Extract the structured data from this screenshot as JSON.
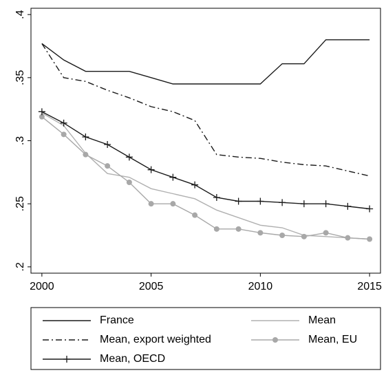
{
  "chart_data": {
    "type": "line",
    "x": [
      2000,
      2001,
      2002,
      2003,
      2004,
      2005,
      2006,
      2007,
      2008,
      2009,
      2010,
      2011,
      2012,
      2013,
      2014,
      2015
    ],
    "xlim": [
      1999.5,
      2015.5
    ],
    "xticks": [
      2000,
      2005,
      2010,
      2015
    ],
    "ylim": [
      0.195,
      0.405
    ],
    "yticks": [
      {
        "value": 0.2,
        "label": ".2"
      },
      {
        "value": 0.25,
        "label": ".25"
      },
      {
        "value": 0.3,
        "label": ".3"
      },
      {
        "value": 0.35,
        "label": ".35"
      },
      {
        "value": 0.4,
        "label": ".4"
      }
    ],
    "series": [
      {
        "name": "France",
        "color": "#1a1a1a",
        "dash": "solid",
        "marker": "none",
        "values": [
          0.377,
          0.364,
          0.355,
          0.355,
          0.355,
          0.35,
          0.345,
          0.345,
          0.345,
          0.345,
          0.345,
          0.361,
          0.361,
          0.38,
          0.38,
          0.38
        ]
      },
      {
        "name": "Mean",
        "color": "#b0b0b0",
        "dash": "solid",
        "marker": "none",
        "values": [
          0.322,
          0.312,
          0.29,
          0.274,
          0.271,
          0.262,
          0.258,
          0.254,
          0.245,
          0.239,
          0.233,
          0.231,
          0.225,
          0.224,
          0.223,
          0.222
        ]
      },
      {
        "name": "Mean, export weighted",
        "color": "#1a1a1a",
        "dash": "dashdot",
        "marker": "none",
        "values": [
          0.377,
          0.35,
          0.347,
          0.34,
          0.334,
          0.327,
          0.323,
          0.316,
          0.289,
          0.287,
          0.286,
          0.283,
          0.281,
          0.28,
          0.276,
          0.272
        ]
      },
      {
        "name": "Mean, EU",
        "color": "#a8a8a8",
        "dash": "solid",
        "marker": "circle",
        "values": [
          0.319,
          0.305,
          0.289,
          0.28,
          0.267,
          0.25,
          0.25,
          0.241,
          0.23,
          0.23,
          0.227,
          0.225,
          0.224,
          0.227,
          0.223,
          0.222
        ]
      },
      {
        "name": "Mean, OECD",
        "color": "#1a1a1a",
        "dash": "solid",
        "marker": "plus",
        "values": [
          0.323,
          0.314,
          0.303,
          0.297,
          0.287,
          0.277,
          0.271,
          0.265,
          0.255,
          0.252,
          0.252,
          0.251,
          0.25,
          0.25,
          0.248,
          0.246
        ]
      }
    ]
  }
}
